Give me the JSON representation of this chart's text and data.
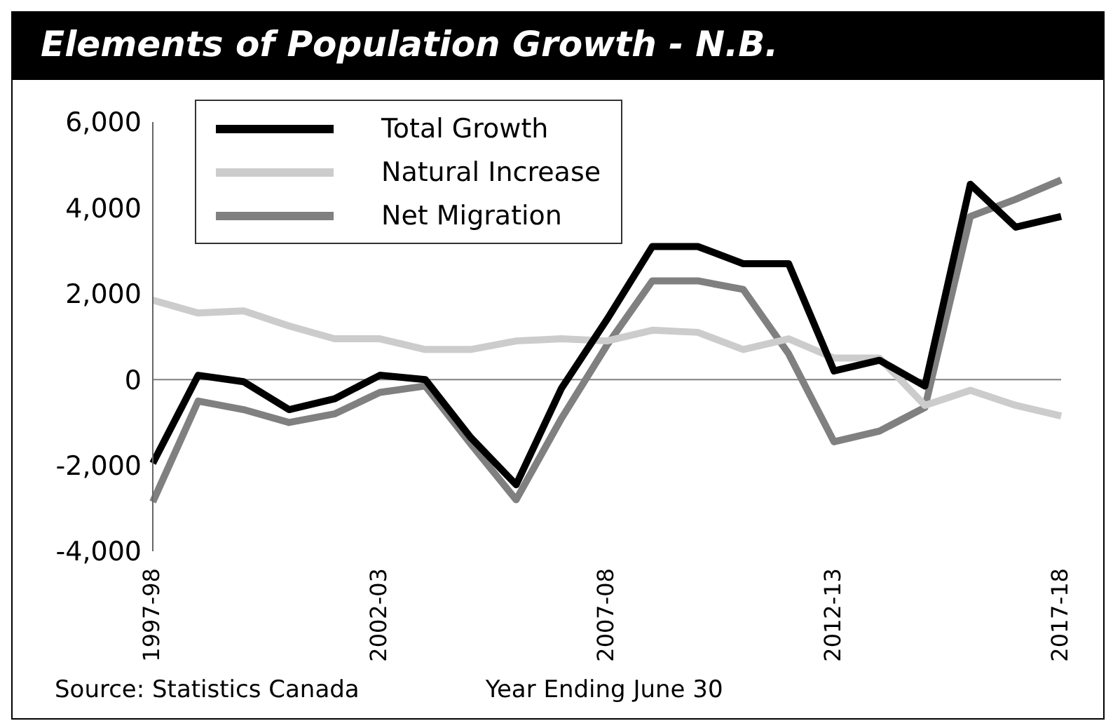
{
  "chart_data": {
    "type": "line",
    "title": "Elements of Population Growth - N.B.",
    "xlabel": "Year Ending June 30",
    "annotations": [
      "Source: Statistics Canada"
    ],
    "categories": [
      "1997-98",
      null,
      null,
      null,
      null,
      "2002-03",
      null,
      null,
      null,
      null,
      "2007-08",
      null,
      null,
      null,
      null,
      "2012-13",
      null,
      null,
      null,
      null,
      "2017-18"
    ],
    "series": [
      {
        "name": "Total Growth",
        "color": "#000000",
        "values": [
          -1950,
          100,
          -50,
          -700,
          -450,
          100,
          0,
          -1350,
          -2450,
          -200,
          1400,
          3100,
          3100,
          2700,
          2700,
          200,
          450,
          -150,
          4550,
          3550,
          3800
        ]
      },
      {
        "name": "Natural Increase",
        "color": "#cccccc",
        "values": [
          1850,
          1550,
          1600,
          1250,
          950,
          950,
          700,
          700,
          900,
          950,
          900,
          1150,
          1100,
          700,
          950,
          500,
          500,
          -600,
          -250,
          -600,
          -850
        ]
      },
      {
        "name": "Net Migration",
        "color": "#808080",
        "values": [
          -2850,
          -500,
          -700,
          -1000,
          -800,
          -300,
          -150,
          -1500,
          -2800,
          -900,
          800,
          2300,
          2300,
          2100,
          600,
          -1450,
          -1200,
          -650,
          3800,
          4200,
          4650
        ]
      }
    ],
    "ylim": [
      -4000,
      6000
    ],
    "yticks": [
      {
        "value": -4000,
        "label": "-4,000"
      },
      {
        "value": -2000,
        "label": "-2,000"
      },
      0,
      {
        "value": 2000,
        "label": "2,000"
      },
      {
        "value": 4000,
        "label": "4,000"
      },
      {
        "value": 6000,
        "label": "6,000"
      }
    ],
    "grid": false,
    "legend": "top left",
    "marker": "none",
    "line_style": "solid",
    "ref_lines": [
      {
        "axis": "y",
        "value": 0,
        "label": null,
        "color": "#808080"
      }
    ]
  }
}
